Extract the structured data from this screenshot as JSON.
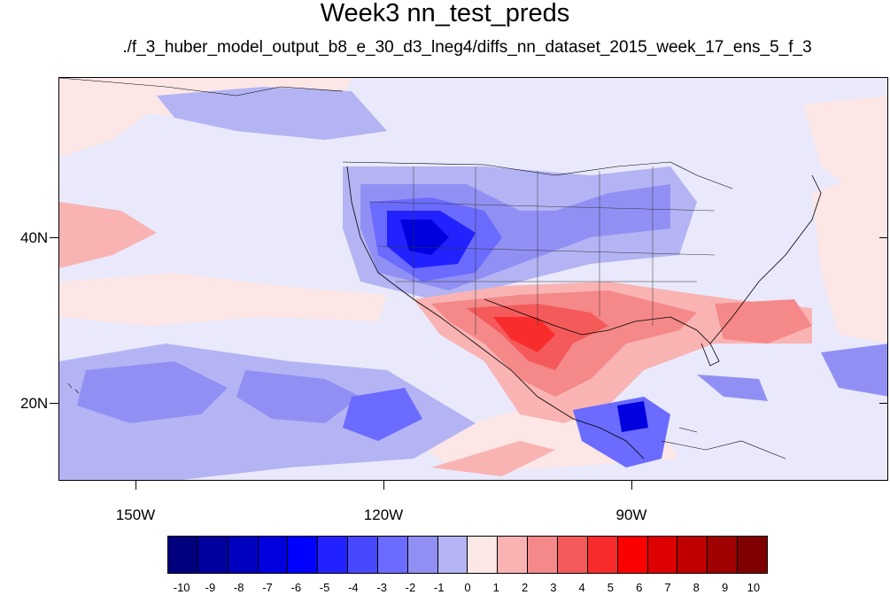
{
  "title": "Week3 nn_test_preds",
  "subtitle": "./f_3_huber_model_output_b8_e_30_d3_lneg4/diffs_nn_dataset_2015_week_17_ens_5_f_3",
  "map": {
    "type": "filled contour map",
    "region": "North America / eastern Pacific",
    "lat_labels": [
      "40N",
      "20N"
    ],
    "lon_labels": [
      "150W",
      "120W",
      "90W"
    ],
    "background_color": "#e9e9fb"
  },
  "colorbar": {
    "labels": [
      "-10",
      "-9",
      "-8",
      "-7",
      "-6",
      "-5",
      "-4",
      "-3",
      "-2",
      "-1",
      "0",
      "1",
      "2",
      "3",
      "4",
      "5",
      "6",
      "7",
      "8",
      "9",
      "10"
    ],
    "colors": [
      "#00007f",
      "#00009f",
      "#0000bf",
      "#0000df",
      "#0000ff",
      "#2222ff",
      "#4848ff",
      "#6b6bff",
      "#9090f4",
      "#b4b4f4",
      "#e9e9fb",
      "#fce6e6",
      "#f9b3b3",
      "#f58888",
      "#f45a5a",
      "#f82c2c",
      "#fc0000",
      "#dc0000",
      "#bf0000",
      "#9f0000",
      "#7f0000"
    ]
  }
}
